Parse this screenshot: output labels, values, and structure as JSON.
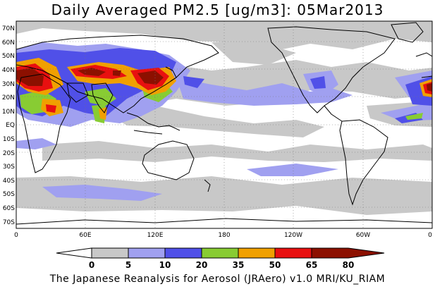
{
  "title": "Daily Averaged PM2.5 [ug/m3]: 05Mar2013",
  "footer": "The Japanese Reanalysis for Aerosol (JRAero) v1.0 MRI/KU_RIAM",
  "map": {
    "projection": "equirectangular",
    "lon_range": [
      0,
      360
    ],
    "lat_range": [
      -75,
      75
    ],
    "lat_labels": [
      "70N",
      "60N",
      "50N",
      "40N",
      "30N",
      "20N",
      "10N",
      "EQ",
      "10S",
      "20S",
      "30S",
      "40S",
      "50S",
      "60S",
      "70S"
    ],
    "lon_labels": [
      "0",
      "60E",
      "120E",
      "180",
      "120W",
      "60W",
      "0"
    ],
    "grid": "dotted"
  },
  "colorbar": {
    "labels": [
      "0",
      "5",
      "10",
      "20",
      "35",
      "50",
      "65",
      "80"
    ],
    "colors": [
      "#ffffff",
      "#c8c8c8",
      "#a0a0f0",
      "#5050e8",
      "#88cc33",
      "#f0a000",
      "#e81010",
      "#8c1000"
    ]
  }
}
